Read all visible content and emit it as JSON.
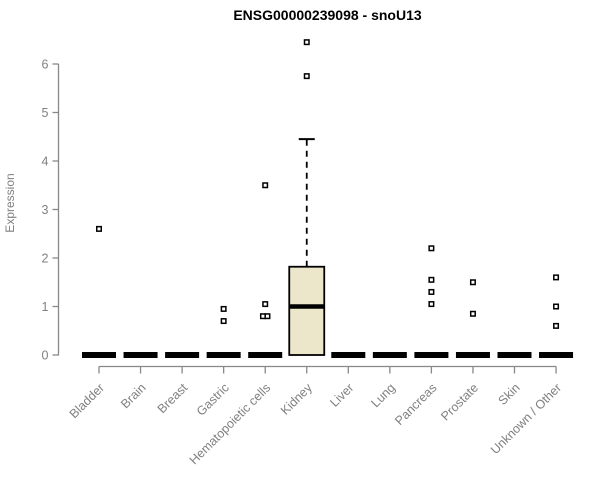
{
  "background": "#ffffff",
  "chart_data": {
    "type": "boxplot",
    "title": "ENSG00000239098 - snoU13",
    "ylabel": "Expression",
    "xlabel": "",
    "ylim": [
      0,
      6.6
    ],
    "yticks": [
      0,
      1,
      2,
      3,
      4,
      5,
      6
    ],
    "grid": false,
    "legend": false,
    "categories": [
      "Bladder",
      "Brain",
      "Breast",
      "Gastric",
      "Hematopoietic cells",
      "Kidney",
      "Liver",
      "Lung",
      "Pancreas",
      "Prostate",
      "Skin",
      "Unknown / Other"
    ],
    "series": [
      {
        "category": "Bladder",
        "q1": 0,
        "median": 0,
        "q3": 0,
        "whisker_low": 0,
        "whisker_high": 0,
        "outliers": [
          2.6
        ]
      },
      {
        "category": "Brain",
        "q1": 0,
        "median": 0,
        "q3": 0,
        "whisker_low": 0,
        "whisker_high": 0,
        "outliers": []
      },
      {
        "category": "Breast",
        "q1": 0,
        "median": 0,
        "q3": 0,
        "whisker_low": 0,
        "whisker_high": 0,
        "outliers": []
      },
      {
        "category": "Gastric",
        "q1": 0,
        "median": 0,
        "q3": 0,
        "whisker_low": 0,
        "whisker_high": 0,
        "outliers": [
          0.95,
          0.7
        ]
      },
      {
        "category": "Hematopoietic cells",
        "q1": 0,
        "median": 0,
        "q3": 0,
        "whisker_low": 0,
        "whisker_high": 0,
        "outliers": [
          3.5,
          1.05,
          0.8,
          0.8
        ]
      },
      {
        "category": "Kidney",
        "q1": 0,
        "median": 1.0,
        "q3": 1.82,
        "whisker_low": 0,
        "whisker_high": 4.45,
        "outliers": [
          6.45,
          5.75
        ]
      },
      {
        "category": "Liver",
        "q1": 0,
        "median": 0,
        "q3": 0,
        "whisker_low": 0,
        "whisker_high": 0,
        "outliers": []
      },
      {
        "category": "Lung",
        "q1": 0,
        "median": 0,
        "q3": 0,
        "whisker_low": 0,
        "whisker_high": 0,
        "outliers": []
      },
      {
        "category": "Pancreas",
        "q1": 0,
        "median": 0,
        "q3": 0,
        "whisker_low": 0,
        "whisker_high": 0,
        "outliers": [
          2.2,
          1.55,
          1.3,
          1.05
        ]
      },
      {
        "category": "Prostate",
        "q1": 0,
        "median": 0,
        "q3": 0,
        "whisker_low": 0,
        "whisker_high": 0,
        "outliers": [
          1.5,
          0.85
        ]
      },
      {
        "category": "Skin",
        "q1": 0,
        "median": 0,
        "q3": 0,
        "whisker_low": 0,
        "whisker_high": 0,
        "outliers": []
      },
      {
        "category": "Unknown / Other",
        "q1": 0,
        "median": 0,
        "q3": 0,
        "whisker_low": 0,
        "whisker_high": 0,
        "outliers": [
          1.6,
          1.0,
          0.6
        ]
      }
    ],
    "colors": {
      "box_fill": "#ece7cb",
      "box_border": "#000000",
      "median": "#000000",
      "whisker": "#000000",
      "outlier_stroke": "#000000",
      "outlier_fill": "#ffffff",
      "axis": "#888888",
      "tick_text": "#808080",
      "title_text": "#000000"
    }
  }
}
